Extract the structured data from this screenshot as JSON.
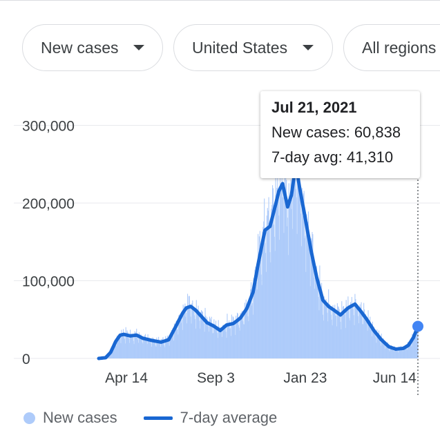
{
  "filters": {
    "metric": "New cases",
    "country": "United States",
    "region": "All regions"
  },
  "tooltip": {
    "date": "Jul 21, 2021",
    "new_cases": "New cases: 60,838",
    "avg": "7-day avg: 41,310"
  },
  "legend": {
    "new_cases": "New cases",
    "avg": "7-day average"
  },
  "colors": {
    "bars": "#aecbfa",
    "line": "#1967d2",
    "grid": "#e8eaed"
  },
  "chart_data": {
    "type": "area",
    "y_ticks": [
      0,
      100000,
      200000,
      300000
    ],
    "y_tick_labels": [
      "0",
      "100,000",
      "200,000",
      "300,000"
    ],
    "x_tick_labels": [
      "Apr 14",
      "Sep 3",
      "Jan 23",
      "Jun 14"
    ],
    "x_tick_dates": [
      "2020-04-14",
      "2020-09-03",
      "2021-01-23",
      "2021-06-14"
    ],
    "xlim": [
      "2020-03-01",
      "2021-07-21"
    ],
    "ylim": [
      0,
      330000
    ],
    "grid": true,
    "legend_position": "bottom-left",
    "series": [
      {
        "name": "7-day average",
        "kind": "line",
        "points": [
          [
            "2020-03-01",
            0
          ],
          [
            "2020-03-12",
            1000
          ],
          [
            "2020-03-20",
            8000
          ],
          [
            "2020-03-28",
            22000
          ],
          [
            "2020-04-04",
            30000
          ],
          [
            "2020-04-10",
            31000
          ],
          [
            "2020-04-20",
            29000
          ],
          [
            "2020-04-30",
            30000
          ],
          [
            "2020-05-10",
            26000
          ],
          [
            "2020-05-25",
            23000
          ],
          [
            "2020-06-08",
            21000
          ],
          [
            "2020-06-20",
            24000
          ],
          [
            "2020-06-28",
            36000
          ],
          [
            "2020-07-05",
            47000
          ],
          [
            "2020-07-12",
            58000
          ],
          [
            "2020-07-18",
            65000
          ],
          [
            "2020-07-25",
            67000
          ],
          [
            "2020-08-02",
            62000
          ],
          [
            "2020-08-10",
            55000
          ],
          [
            "2020-08-20",
            46000
          ],
          [
            "2020-08-30",
            42000
          ],
          [
            "2020-09-10",
            36000
          ],
          [
            "2020-09-20",
            43000
          ],
          [
            "2020-10-01",
            45000
          ],
          [
            "2020-10-12",
            52000
          ],
          [
            "2020-10-22",
            64000
          ],
          [
            "2020-11-01",
            85000
          ],
          [
            "2020-11-10",
            125000
          ],
          [
            "2020-11-20",
            165000
          ],
          [
            "2020-11-28",
            170000
          ],
          [
            "2020-12-06",
            195000
          ],
          [
            "2020-12-12",
            215000
          ],
          [
            "2020-12-18",
            225000
          ],
          [
            "2020-12-26",
            195000
          ],
          [
            "2021-01-01",
            210000
          ],
          [
            "2021-01-08",
            250000
          ],
          [
            "2021-01-14",
            220000
          ],
          [
            "2021-01-22",
            185000
          ],
          [
            "2021-02-01",
            140000
          ],
          [
            "2021-02-10",
            105000
          ],
          [
            "2021-02-20",
            75000
          ],
          [
            "2021-03-01",
            67000
          ],
          [
            "2021-03-10",
            62000
          ],
          [
            "2021-03-20",
            56000
          ],
          [
            "2021-04-01",
            65000
          ],
          [
            "2021-04-12",
            70000
          ],
          [
            "2021-04-22",
            60000
          ],
          [
            "2021-05-01",
            50000
          ],
          [
            "2021-05-12",
            36000
          ],
          [
            "2021-05-24",
            24000
          ],
          [
            "2021-06-05",
            15000
          ],
          [
            "2021-06-16",
            12000
          ],
          [
            "2021-06-28",
            13000
          ],
          [
            "2021-07-06",
            17000
          ],
          [
            "2021-07-14",
            27000
          ],
          [
            "2021-07-21",
            41310
          ]
        ]
      }
    ]
  }
}
